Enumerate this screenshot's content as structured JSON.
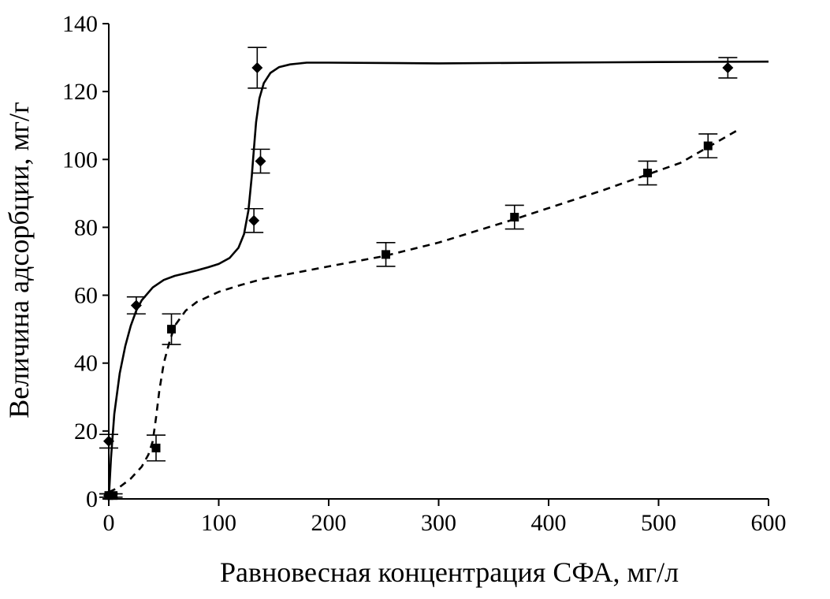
{
  "chart_data": {
    "type": "scatter",
    "title": "",
    "xlabel": "Равновесная концентрация СФА, мг/л",
    "ylabel": "Величина адсорбции, мг/г",
    "xlim": [
      0,
      600
    ],
    "ylim": [
      0,
      140
    ],
    "x_ticks": [
      "0",
      "100",
      "200",
      "300",
      "400",
      "500",
      "600"
    ],
    "y_ticks": [
      "0",
      "20",
      "40",
      "60",
      "80",
      "100",
      "120",
      "140"
    ],
    "grid": false,
    "legend": "none",
    "series": [
      {
        "marker": "diamond",
        "line_style": "solid",
        "color": "#000000",
        "points": [
          {
            "x": 0,
            "y": 1,
            "err": 0.5
          },
          {
            "x": 0,
            "y": 17,
            "err": 2
          },
          {
            "x": 25,
            "y": 57,
            "err": 2.5
          },
          {
            "x": 132,
            "y": 82,
            "err": 3.5
          },
          {
            "x": 138,
            "y": 99.5,
            "err": 3.5
          },
          {
            "x": 135,
            "y": 127,
            "err": 6
          },
          {
            "x": 563,
            "y": 127,
            "err": 3
          }
        ],
        "curve": [
          [
            0,
            0
          ],
          [
            2,
            12
          ],
          [
            5,
            25
          ],
          [
            10,
            37
          ],
          [
            15,
            45
          ],
          [
            20,
            51
          ],
          [
            25,
            55.5
          ],
          [
            30,
            58.5
          ],
          [
            40,
            62.3
          ],
          [
            50,
            64.5
          ],
          [
            60,
            65.7
          ],
          [
            70,
            66.5
          ],
          [
            80,
            67.3
          ],
          [
            90,
            68.2
          ],
          [
            100,
            69.2
          ],
          [
            110,
            71
          ],
          [
            118,
            74
          ],
          [
            123,
            78
          ],
          [
            127,
            85
          ],
          [
            130,
            95
          ],
          [
            132,
            103
          ],
          [
            134,
            111
          ],
          [
            137,
            118
          ],
          [
            141,
            122.5
          ],
          [
            147,
            125.5
          ],
          [
            155,
            127.2
          ],
          [
            165,
            128
          ],
          [
            180,
            128.5
          ],
          [
            200,
            128.5
          ],
          [
            300,
            128.3
          ],
          [
            400,
            128.5
          ],
          [
            500,
            128.7
          ],
          [
            600,
            128.8
          ]
        ]
      },
      {
        "marker": "square",
        "line_style": "dashed",
        "color": "#000000",
        "points": [
          {
            "x": 0,
            "y": 1,
            "err": 0.5
          },
          {
            "x": 4,
            "y": 1,
            "err": 0.5
          },
          {
            "x": 43,
            "y": 15,
            "err": 3.8
          },
          {
            "x": 57,
            "y": 50,
            "err": 4.5
          },
          {
            "x": 252,
            "y": 72,
            "err": 3.5
          },
          {
            "x": 369,
            "y": 83,
            "err": 3.5
          },
          {
            "x": 490,
            "y": 96,
            "err": 3.5
          },
          {
            "x": 545,
            "y": 104,
            "err": 3.5
          }
        ],
        "curve": [
          [
            0,
            2
          ],
          [
            10,
            3.5
          ],
          [
            20,
            6
          ],
          [
            30,
            9.5
          ],
          [
            36,
            13
          ],
          [
            40,
            17
          ],
          [
            43,
            24
          ],
          [
            46,
            32
          ],
          [
            50,
            40
          ],
          [
            55,
            46
          ],
          [
            60,
            51
          ],
          [
            70,
            55.5
          ],
          [
            80,
            58
          ],
          [
            100,
            61
          ],
          [
            120,
            63
          ],
          [
            140,
            64.8
          ],
          [
            160,
            66
          ],
          [
            200,
            68.5
          ],
          [
            250,
            71.5
          ],
          [
            300,
            75.5
          ],
          [
            370,
            82.5
          ],
          [
            450,
            91
          ],
          [
            520,
            99
          ],
          [
            574,
            109
          ]
        ]
      }
    ]
  }
}
